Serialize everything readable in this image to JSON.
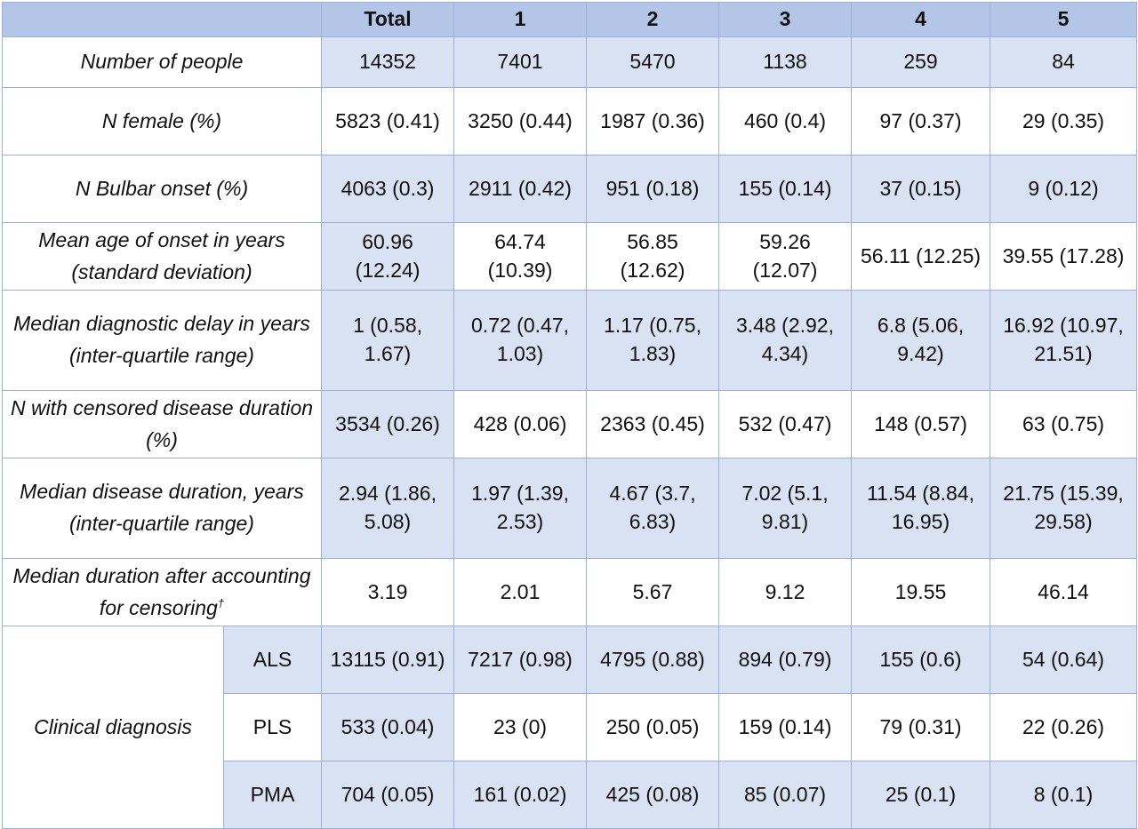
{
  "columns": [
    "Total",
    "1",
    "2",
    "3",
    "4",
    "5"
  ],
  "rows": [
    {
      "label": "Number of people",
      "values": [
        "14352",
        "7401",
        "5470",
        "1138",
        "259",
        "84"
      ]
    },
    {
      "label": "N female (%)",
      "values": [
        "5823 (0.41)",
        "3250 (0.44)",
        "1987 (0.36)",
        "460 (0.4)",
        "97 (0.37)",
        "29 (0.35)"
      ]
    },
    {
      "label": "N Bulbar onset (%)",
      "values": [
        "4063 (0.3)",
        "2911 (0.42)",
        "951 (0.18)",
        "155 (0.14)",
        "37 (0.15)",
        "9 (0.12)"
      ]
    },
    {
      "label": "Mean age of onset in years (standard deviation)",
      "values": [
        "60.96 (12.24)",
        "64.74 (10.39)",
        "56.85 (12.62)",
        "59.26 (12.07)",
        "56.11 (12.25)",
        "39.55 (17.28)"
      ]
    },
    {
      "label": "Median diagnostic delay in years (inter-quartile range)",
      "values": [
        "1 (0.58, 1.67)",
        "0.72 (0.47, 1.03)",
        "1.17 (0.75, 1.83)",
        "3.48 (2.92, 4.34)",
        "6.8 (5.06, 9.42)",
        "16.92 (10.97, 21.51)"
      ]
    },
    {
      "label": "N with censored disease duration (%)",
      "values": [
        "3534 (0.26)",
        "428 (0.06)",
        "2363 (0.45)",
        "532 (0.47)",
        "148 (0.57)",
        "63 (0.75)"
      ]
    },
    {
      "label": "Median disease duration, years (inter-quartile range)",
      "values": [
        "2.94 (1.86, 5.08)",
        "1.97 (1.39, 2.53)",
        "4.67 (3.7, 6.83)",
        "7.02 (5.1, 9.81)",
        "11.54 (8.84, 16.95)",
        "21.75 (15.39, 29.58)"
      ]
    },
    {
      "label": "Median duration after accounting for censoring",
      "footnote_mark": "†",
      "values": [
        "3.19",
        "2.01",
        "5.67",
        "9.12",
        "19.55",
        "46.14"
      ]
    }
  ],
  "clinical_diagnosis": {
    "label": "Clinical diagnosis",
    "rows": [
      {
        "label": "ALS",
        "values": [
          "13115 (0.91)",
          "7217 (0.98)",
          "4795 (0.88)",
          "894 (0.79)",
          "155 (0.6)",
          "54 (0.64)"
        ]
      },
      {
        "label": "PLS",
        "values": [
          "533 (0.04)",
          "23 (0)",
          "250 (0.05)",
          "159 (0.14)",
          "79 (0.31)",
          "22 (0.26)"
        ]
      },
      {
        "label": "PMA",
        "values": [
          "704 (0.05)",
          "161 (0.02)",
          "425 (0.08)",
          "85 (0.07)",
          "25 (0.1)",
          "8 (0.1)"
        ]
      }
    ]
  },
  "colors": {
    "header": "#b4c6e7",
    "shade": "#d9e2f3",
    "border": "#9bb0dd"
  }
}
